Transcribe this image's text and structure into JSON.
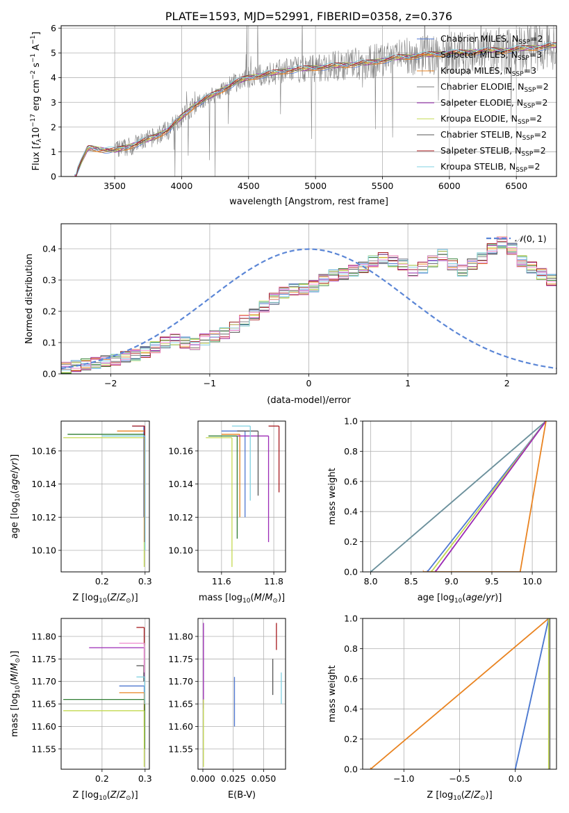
{
  "colors": [
    "#4f77d1",
    "#e98320",
    "#2f7d32",
    "#7a7a7a",
    "#9b29b5",
    "#c3d84f",
    "#555555",
    "#a6191d",
    "#7fd0e0"
  ],
  "legend": [
    {
      "name": "Chabrier MILES",
      "n": "2",
      "sub": "SSP",
      "color": "#4f77d1"
    },
    {
      "name": "Salpeter MILES",
      "n": "3",
      "sub": "SSP",
      "color": "#e98320"
    },
    {
      "name": "Kroupa MILES",
      "n": "3",
      "sub": "SSP",
      "color": "#e98320"
    },
    {
      "name": "Chabrier ELODIE",
      "n": "2",
      "sub": "SSP",
      "color": "#7a7a7a"
    },
    {
      "name": "Salpeter ELODIE",
      "n": "2",
      "sub": "SSP",
      "color": "#9b29b5"
    },
    {
      "name": "Kroupa ELODIE",
      "n": "2",
      "sub": "SSP",
      "color": "#c3d84f"
    },
    {
      "name": "Chabrier STELIB",
      "n": "2",
      "sub": "SSP",
      "color": "#555555"
    },
    {
      "name": "Salpeter STELIB",
      "n": "2",
      "sub": "SSP",
      "color": "#a6191d"
    },
    {
      "name": "Kroupa STELIB",
      "n": "2",
      "sub": "SSP",
      "color": "#7fd0e0"
    }
  ],
  "chart_data": [
    {
      "id": "spectrum",
      "type": "line",
      "title": "PLATE=1593, MJD=52991, FIBERID=0358, z=0.376",
      "xlabel": "wavelength [Angstrom, rest frame]",
      "ylabel": "Flux [f_λ 10^-17 erg cm^-2 s^-1 A^-1]",
      "xlim": [
        3100,
        6800
      ],
      "ylim": [
        0,
        6.1
      ],
      "xticks": [
        3500,
        4000,
        4500,
        5000,
        5500,
        6000,
        6500
      ],
      "yticks": [
        0,
        1,
        2,
        3,
        4,
        5,
        6
      ],
      "legend_position": "upper right",
      "data_start": 3200,
      "model_x": [
        3200,
        3300,
        3400,
        3500,
        3600,
        3700,
        3800,
        3900,
        4000,
        4100,
        4200,
        4300,
        4400,
        4500,
        4600,
        4700,
        4800,
        4900,
        5000,
        5100,
        5200,
        5300,
        5400,
        5500,
        5600,
        5700,
        5800,
        5900,
        6000,
        6100,
        6200,
        6300,
        6400,
        6500,
        6600,
        6700,
        6800
      ],
      "model_y": [
        0.0,
        1.15,
        1.1,
        1.05,
        1.2,
        1.4,
        1.6,
        1.9,
        2.4,
        2.9,
        3.2,
        3.5,
        3.8,
        4.0,
        4.1,
        4.2,
        4.3,
        4.35,
        4.4,
        4.45,
        4.5,
        4.55,
        4.6,
        4.7,
        4.8,
        4.85,
        4.9,
        4.95,
        5.0,
        5.0,
        5.05,
        5.1,
        5.1,
        5.15,
        5.2,
        5.25,
        5.3
      ]
    },
    {
      "id": "residuals",
      "type": "step",
      "xlabel": "(data-model)/error",
      "ylabel": "Normed distribution",
      "xlim": [
        -2.5,
        2.5
      ],
      "ylim": [
        0,
        0.48
      ],
      "xticks": [
        -2,
        -1,
        0,
        1,
        2
      ],
      "yticks": [
        0.0,
        0.1,
        0.2,
        0.3,
        0.4
      ],
      "bin_width": 0.1,
      "bins_start": -2.5,
      "hist_base": [
        0.02,
        0.025,
        0.03,
        0.035,
        0.04,
        0.045,
        0.055,
        0.06,
        0.07,
        0.085,
        0.1,
        0.11,
        0.1,
        0.095,
        0.11,
        0.12,
        0.13,
        0.15,
        0.17,
        0.19,
        0.215,
        0.24,
        0.26,
        0.27,
        0.27,
        0.28,
        0.3,
        0.315,
        0.32,
        0.33,
        0.34,
        0.36,
        0.37,
        0.36,
        0.35,
        0.33,
        0.34,
        0.36,
        0.38,
        0.35,
        0.33,
        0.35,
        0.37,
        0.4,
        0.42,
        0.4,
        0.36,
        0.34,
        0.32,
        0.3,
        0.27,
        0.26,
        0.3,
        0.32,
        0.28,
        0.25,
        0.22,
        0.2,
        0.2,
        0.19,
        0.17,
        0.16,
        0.16,
        0.15,
        0.14,
        0.12,
        0.11,
        0.1,
        0.09,
        0.085,
        0.08,
        0.075,
        0.08,
        0.08,
        0.075,
        0.07,
        0.065,
        0.06,
        0.06,
        0.065,
        0.07,
        0.08,
        0.075,
        0.08,
        0.085,
        0.09,
        0.08,
        0.08,
        0.075,
        0.07
      ],
      "gaussian_label": "N(0,1)",
      "gaussian_color": "#5b86d6"
    },
    {
      "id": "age-vs-Z",
      "type": "errorbar",
      "xlabel": "Z [log10(Z/Z⊙)]",
      "ylabel": "age [log10(age/yr)]",
      "xlim": [
        0.105,
        0.31
      ],
      "ylim": [
        10.087,
        10.178
      ],
      "xticks": [
        0.2,
        0.3
      ],
      "yticks": [
        10.1,
        10.12,
        10.14,
        10.16
      ],
      "points": [
        {
          "x": 0.297,
          "y": 10.175,
          "xlo": 0.27,
          "ylo": 10.12,
          "c": "#4f77d1"
        },
        {
          "x": 0.299,
          "y": 10.172,
          "xlo": 0.235,
          "ylo": 10.13,
          "c": "#e98320"
        },
        {
          "x": 0.299,
          "y": 10.17,
          "xlo": 0.12,
          "ylo": 10.11,
          "c": "#2f7d32"
        },
        {
          "x": 0.298,
          "y": 10.168,
          "xlo": 0.11,
          "ylo": 10.09,
          "c": "#c3d84f"
        },
        {
          "x": 0.299,
          "y": 10.175,
          "xlo": 0.27,
          "ylo": 10.105,
          "c": "#a6191d"
        },
        {
          "x": 0.3,
          "y": 10.169,
          "xlo": 0.2,
          "ylo": 10.1,
          "c": "#7fd0e0"
        }
      ]
    },
    {
      "id": "age-vs-mass",
      "type": "errorbar",
      "xlabel": "mass [log10(M/M⊙)]",
      "ylabel": "",
      "xlim": [
        11.51,
        11.845
      ],
      "ylim": [
        10.087,
        10.178
      ],
      "xticks": [
        11.6,
        11.8
      ],
      "yticks": [
        10.1,
        10.12,
        10.14,
        10.16
      ],
      "points": [
        {
          "x": 11.69,
          "y": 10.172,
          "xlo": 11.6,
          "ylo": 10.12,
          "c": "#4f77d1"
        },
        {
          "x": 11.67,
          "y": 10.17,
          "xlo": 11.6,
          "ylo": 10.12,
          "c": "#e98320"
        },
        {
          "x": 11.66,
          "y": 10.169,
          "xlo": 11.55,
          "ylo": 10.107,
          "c": "#2f7d32"
        },
        {
          "x": 11.64,
          "y": 10.168,
          "xlo": 11.54,
          "ylo": 10.09,
          "c": "#c3d84f"
        },
        {
          "x": 11.78,
          "y": 10.169,
          "xlo": 11.66,
          "ylo": 10.105,
          "c": "#9b29b5"
        },
        {
          "x": 11.74,
          "y": 10.172,
          "xlo": 11.66,
          "ylo": 10.133,
          "c": "#555555"
        },
        {
          "x": 11.82,
          "y": 10.175,
          "xlo": 11.78,
          "ylo": 10.135,
          "c": "#a6191d"
        },
        {
          "x": 11.71,
          "y": 10.175,
          "xlo": 11.64,
          "ylo": 10.13,
          "c": "#7fd0e0"
        }
      ]
    },
    {
      "id": "mass-weight-vs-age",
      "type": "line",
      "xlabel": "age [log10(age/yr)]",
      "ylabel": "mass weight",
      "xlim": [
        7.9,
        10.3
      ],
      "ylim": [
        0,
        1.0
      ],
      "xticks": [
        8.0,
        8.5,
        9.0,
        9.5,
        10.0
      ],
      "yticks": [
        0.0,
        0.2,
        0.4,
        0.6,
        0.8,
        1.0
      ],
      "lines": [
        {
          "x": [
            8.0,
            10.17
          ],
          "y": [
            0.0,
            1.0
          ],
          "c": "#7fd0e0"
        },
        {
          "x": [
            8.0,
            10.17
          ],
          "y": [
            0.0,
            1.0
          ],
          "c": "#6f8f9a"
        },
        {
          "x": [
            8.7,
            10.17
          ],
          "y": [
            0.0,
            1.0
          ],
          "c": "#4f77d1"
        },
        {
          "x": [
            8.75,
            10.17
          ],
          "y": [
            0.0,
            1.0
          ],
          "c": "#c3d84f"
        },
        {
          "x": [
            8.8,
            10.17
          ],
          "y": [
            0.0,
            1.0
          ],
          "c": "#9b29b5"
        },
        {
          "x": [
            8.65,
            9.85
          ],
          "y": [
            0.0,
            0.0
          ],
          "c": "#e98320"
        },
        {
          "x": [
            9.85,
            10.17
          ],
          "y": [
            0.0,
            1.0
          ],
          "c": "#e98320"
        }
      ]
    },
    {
      "id": "mass-vs-Z",
      "type": "errorbar",
      "xlabel": "Z [log10(Z/Z⊙)]",
      "ylabel": "mass [log10(M/M⊙)]",
      "xlim": [
        0.105,
        0.31
      ],
      "ylim": [
        11.505,
        11.84
      ],
      "xticks": [
        0.2,
        0.3
      ],
      "yticks": [
        11.55,
        11.6,
        11.65,
        11.7,
        11.75,
        11.8
      ],
      "points": [
        {
          "x": 0.298,
          "y": 11.69,
          "xlo": 0.24,
          "ylo": 11.6,
          "c": "#4f77d1"
        },
        {
          "x": 0.298,
          "y": 11.675,
          "xlo": 0.24,
          "ylo": 11.6,
          "c": "#e98320"
        },
        {
          "x": 0.299,
          "y": 11.66,
          "xlo": 0.11,
          "ylo": 11.55,
          "c": "#2f7d32"
        },
        {
          "x": 0.298,
          "y": 11.635,
          "xlo": 0.11,
          "ylo": 11.51,
          "c": "#c3d84f"
        },
        {
          "x": 0.298,
          "y": 11.775,
          "xlo": 0.17,
          "ylo": 11.7,
          "c": "#9b29b5"
        },
        {
          "x": 0.297,
          "y": 11.735,
          "xlo": 0.28,
          "ylo": 11.7,
          "c": "#555555"
        },
        {
          "x": 0.298,
          "y": 11.82,
          "xlo": 0.28,
          "ylo": 11.78,
          "c": "#a6191d"
        },
        {
          "x": 0.299,
          "y": 11.71,
          "xlo": 0.28,
          "ylo": 11.65,
          "c": "#7fd0e0"
        },
        {
          "x": 0.298,
          "y": 11.785,
          "xlo": 0.24,
          "ylo": 11.72,
          "c": "#ee88cc"
        }
      ]
    },
    {
      "id": "mass-vs-EBV",
      "type": "errorbar",
      "xlabel": "E(B-V)",
      "ylabel": "",
      "xlim": [
        -0.004,
        0.068
      ],
      "ylim": [
        11.505,
        11.84
      ],
      "xticks": [
        0.0,
        0.025,
        0.05
      ],
      "xtick_labels": [
        "0.000",
        "0.025",
        "0.050"
      ],
      "yticks": [
        11.55,
        11.6,
        11.65,
        11.7,
        11.75,
        11.8
      ],
      "vbars": [
        {
          "x": 0.0005,
          "ylo": 11.64,
          "yhi": 11.83,
          "c": "#9b29b5"
        },
        {
          "x": 0.0005,
          "ylo": 11.51,
          "yhi": 11.66,
          "c": "#c3d84f"
        },
        {
          "x": 0.026,
          "ylo": 11.6,
          "yhi": 11.71,
          "c": "#4f77d1"
        },
        {
          "x": 0.0575,
          "ylo": 11.67,
          "yhi": 11.75,
          "c": "#555555"
        },
        {
          "x": 0.0605,
          "ylo": 11.77,
          "yhi": 11.83,
          "c": "#a6191d"
        },
        {
          "x": 0.0645,
          "ylo": 11.65,
          "yhi": 11.72,
          "c": "#7fd0e0"
        }
      ]
    },
    {
      "id": "mass-weight-vs-Z",
      "type": "line",
      "xlabel": "Z [log10(Z/Z⊙)]",
      "ylabel": "mass weight",
      "xlim": [
        -1.37,
        0.37
      ],
      "ylim": [
        0,
        1.0
      ],
      "xticks": [
        -1.0,
        -0.5,
        0.0
      ],
      "yticks": [
        0.0,
        0.2,
        0.4,
        0.6,
        0.8,
        1.0
      ],
      "lines": [
        {
          "x": [
            -1.3,
            0.3
          ],
          "y": [
            0.0,
            1.0
          ],
          "c": "#e98320"
        },
        {
          "x": [
            0.0,
            0.3
          ],
          "y": [
            0.0,
            1.0
          ],
          "c": "#7fd0e0"
        },
        {
          "x": [
            0.0,
            0.3
          ],
          "y": [
            0.0,
            1.0
          ],
          "c": "#4f77d1"
        },
        {
          "x": [
            0.3,
            0.3
          ],
          "y": [
            0.0,
            1.0
          ],
          "c": "#c3d84f"
        },
        {
          "x": [
            0.31,
            0.31
          ],
          "y": [
            0.0,
            1.0
          ],
          "c": "#7a7a7a"
        }
      ]
    }
  ]
}
